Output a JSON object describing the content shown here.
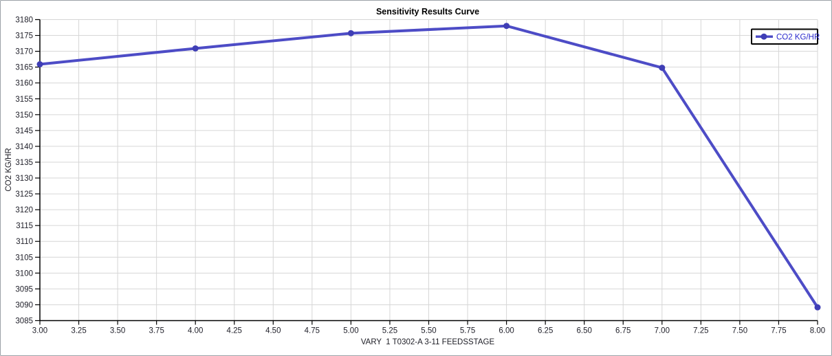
{
  "theme": {
    "background": "#ffffff",
    "window_border": "#9aa0a6",
    "line": "#4d4cc6",
    "marker": "#3f3eb5",
    "legend_text": "#2b2acd",
    "legend_border": "#000000",
    "grid": "#d6d6d6",
    "axis": "#000000",
    "tick_text": "#20202a",
    "title_text": "#000000"
  },
  "chart_data": {
    "type": "line",
    "title": "Sensitivity Results Curve",
    "xlabel": "VARY  1 T0302-A 3-11 FEEDSSTAGE",
    "ylabel": "CO2 KG/HR",
    "x": [
      3.0,
      4.0,
      5.0,
      6.0,
      7.0,
      8.0
    ],
    "series": [
      {
        "name": "CO2 KG/HR",
        "values": [
          3165.9,
          3170.9,
          3175.7,
          3178.0,
          3164.8,
          3089.2
        ]
      }
    ],
    "xlim": [
      3.0,
      8.0
    ],
    "ylim": [
      3085,
      3180
    ],
    "x_tick_step": 0.25,
    "y_tick_step": 5,
    "x_tick_labels": [
      "3.00",
      "3.25",
      "3.50",
      "3.75",
      "4.00",
      "4.25",
      "4.50",
      "4.75",
      "5.00",
      "5.25",
      "5.50",
      "5.75",
      "6.00",
      "6.25",
      "6.50",
      "6.75",
      "7.00",
      "7.25",
      "7.50",
      "7.75",
      "8.00"
    ],
    "y_tick_labels": [
      "3085",
      "3090",
      "3095",
      "3100",
      "3105",
      "3110",
      "3115",
      "3120",
      "3125",
      "3130",
      "3135",
      "3140",
      "3145",
      "3150",
      "3155",
      "3160",
      "3165",
      "3170",
      "3175",
      "3180"
    ],
    "grid": "on",
    "legend_position": "top-right"
  }
}
